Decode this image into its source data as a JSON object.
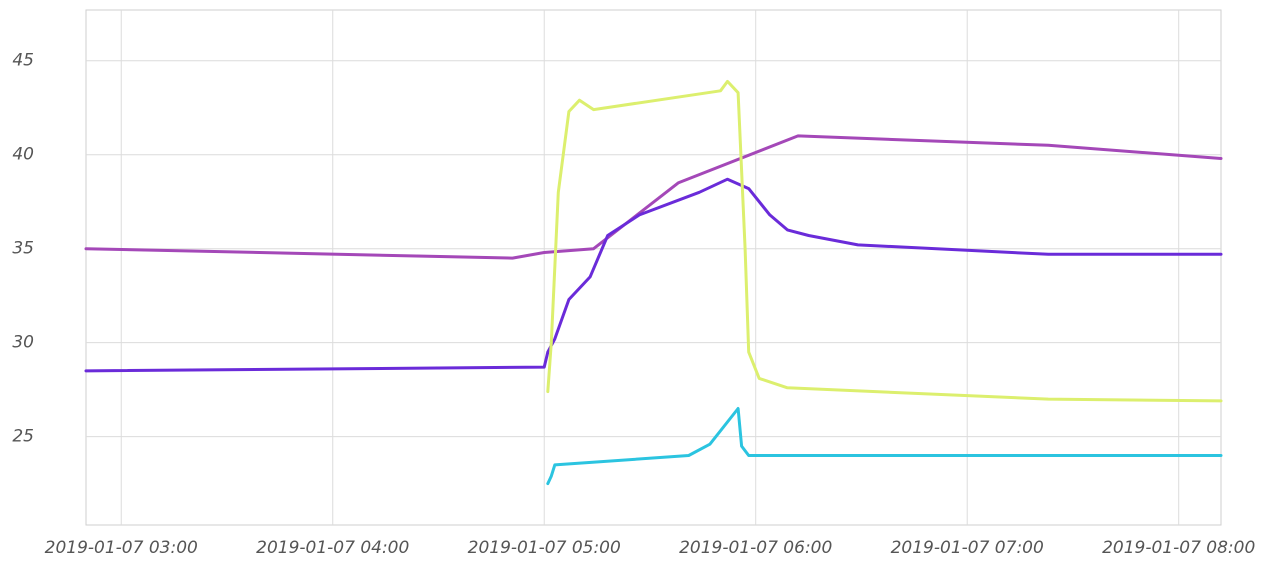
{
  "chart_data": {
    "type": "line",
    "xlim": [
      "2019-01-07 02:50",
      "2019-01-07 08:12"
    ],
    "xticks": [
      "2019-01-07 03:00",
      "2019-01-07 04:00",
      "2019-01-07 05:00",
      "2019-01-07 06:00",
      "2019-01-07 07:00",
      "2019-01-07 08:00"
    ],
    "ylim": [
      20.3,
      47.7
    ],
    "yticks": [
      25,
      30,
      35,
      40,
      45
    ],
    "grid": true,
    "series": [
      {
        "color": "#a448b8",
        "x": [
          "2019-01-07 02:50",
          "2019-01-07 04:51",
          "2019-01-07 05:00",
          "2019-01-07 05:14",
          "2019-01-07 05:38",
          "2019-01-07 06:12",
          "2019-01-07 07:23",
          "2019-01-07 08:12"
        ],
        "values": [
          35.0,
          34.5,
          34.8,
          35.0,
          38.5,
          41.0,
          40.5,
          39.8
        ]
      },
      {
        "color": "#6a2bd9",
        "x": [
          "2019-01-07 02:50",
          "2019-01-07 05:00",
          "2019-01-07 05:01",
          "2019-01-07 05:03",
          "2019-01-07 05:07",
          "2019-01-07 05:13",
          "2019-01-07 05:18",
          "2019-01-07 05:27",
          "2019-01-07 05:44",
          "2019-01-07 05:52",
          "2019-01-07 05:58",
          "2019-01-07 06:04",
          "2019-01-07 06:09",
          "2019-01-07 06:15",
          "2019-01-07 06:29",
          "2019-01-07 07:23",
          "2019-01-07 08:12"
        ],
        "values": [
          28.5,
          28.7,
          29.5,
          30.2,
          32.3,
          33.5,
          35.7,
          36.8,
          38.0,
          38.7,
          38.2,
          36.8,
          36.0,
          35.7,
          35.2,
          34.7,
          34.7
        ]
      },
      {
        "color": "#dcef6e",
        "x": [
          "2019-01-07 05:01",
          "2019-01-07 05:02",
          "2019-01-07 05:04",
          "2019-01-07 05:07",
          "2019-01-07 05:10",
          "2019-01-07 05:14",
          "2019-01-07 05:50",
          "2019-01-07 05:52",
          "2019-01-07 05:55",
          "2019-01-07 05:57",
          "2019-01-07 05:58",
          "2019-01-07 06:01",
          "2019-01-07 06:09",
          "2019-01-07 07:23",
          "2019-01-07 08:12"
        ],
        "values": [
          27.4,
          30.0,
          38.0,
          42.3,
          42.9,
          42.4,
          43.4,
          43.9,
          43.3,
          35.0,
          29.5,
          28.1,
          27.6,
          27.0,
          26.9
        ]
      },
      {
        "color": "#2bc4e0",
        "x": [
          "2019-01-07 05:01",
          "2019-01-07 05:02",
          "2019-01-07 05:03",
          "2019-01-07 05:41",
          "2019-01-07 05:47",
          "2019-01-07 05:55",
          "2019-01-07 05:56",
          "2019-01-07 05:58",
          "2019-01-07 08:12"
        ],
        "values": [
          22.5,
          22.9,
          23.5,
          24.0,
          24.6,
          26.5,
          24.5,
          24.0,
          24.0
        ]
      }
    ]
  }
}
